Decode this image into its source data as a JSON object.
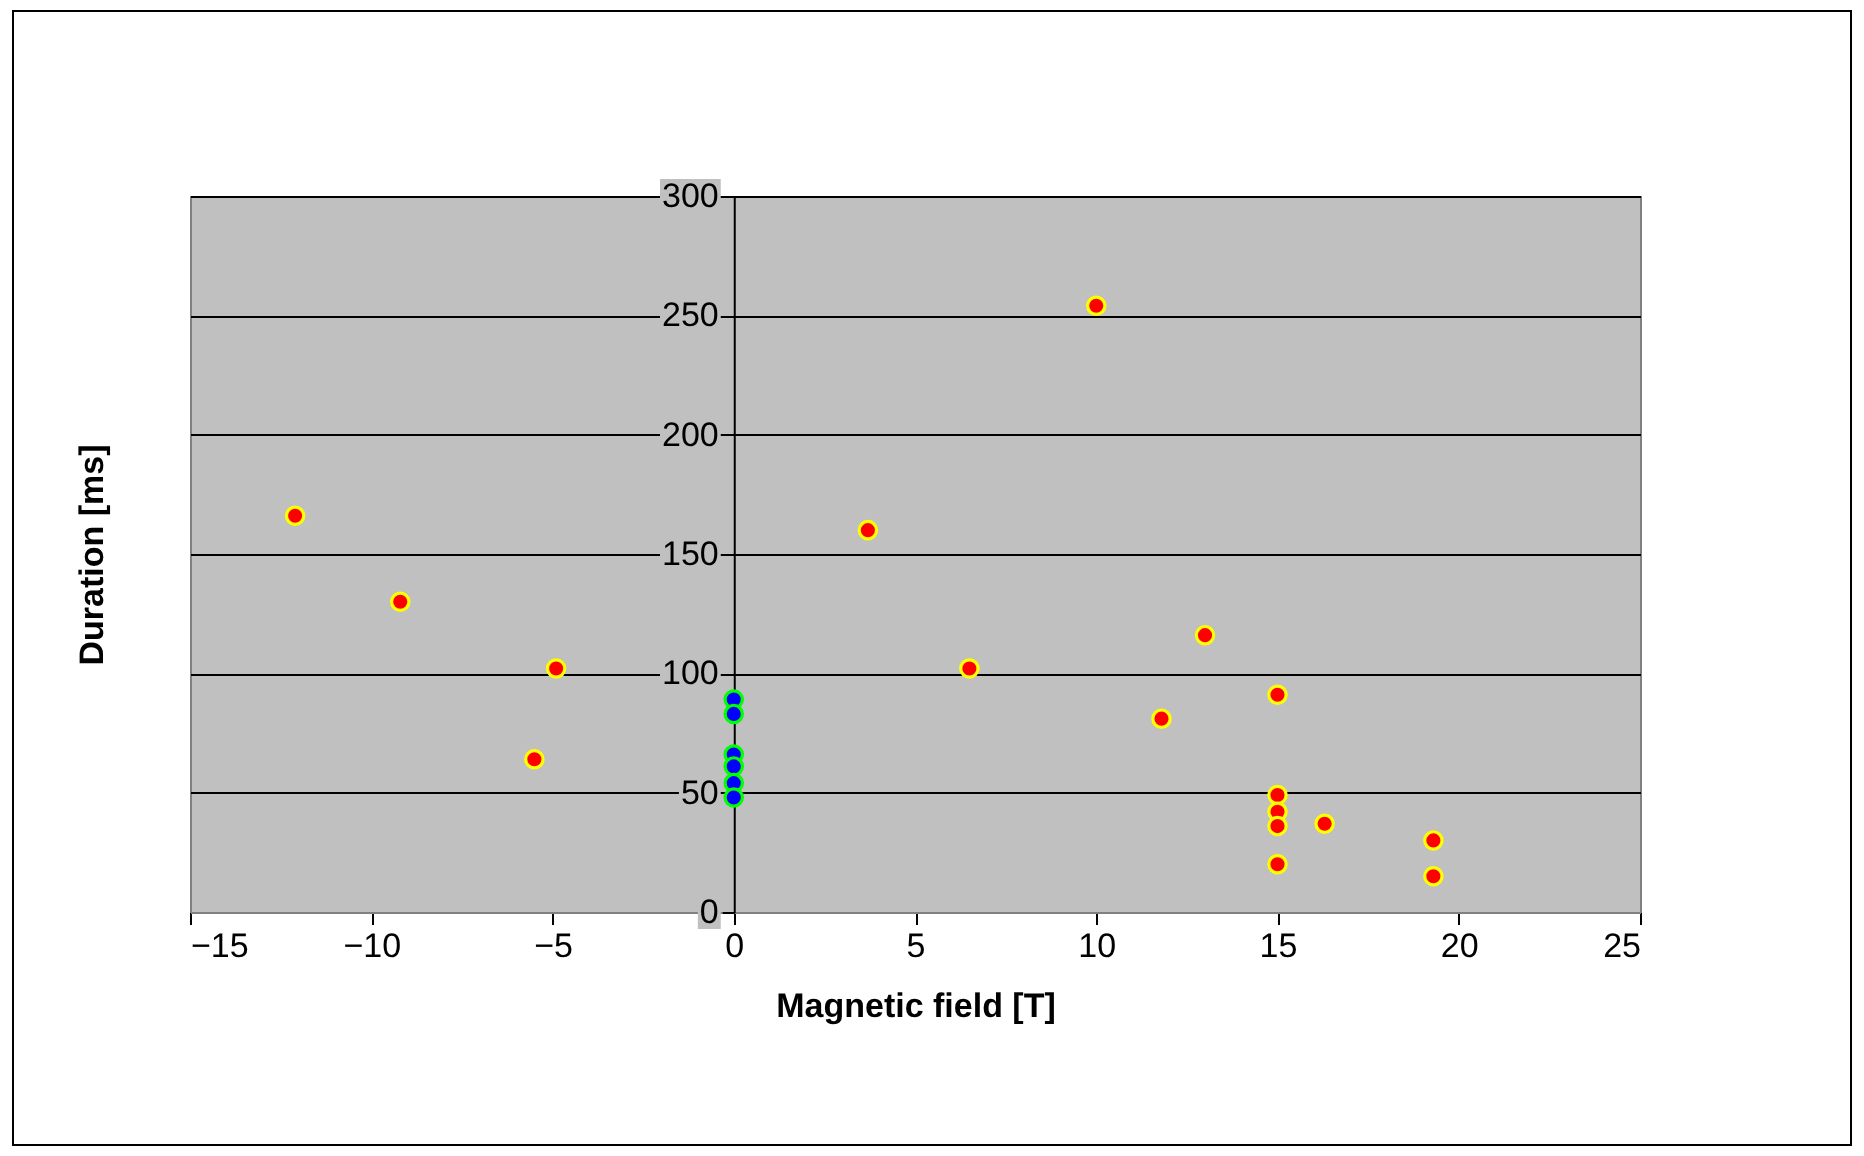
{
  "chart_data": {
    "type": "scatter",
    "xlabel": "Magnetic field [T]",
    "ylabel": "Duration [ms]",
    "xlim": [
      -15,
      25
    ],
    "xticks": [
      -15,
      -10,
      -5,
      0,
      5,
      10,
      15,
      20,
      25
    ],
    "ylim": [
      0,
      300
    ],
    "yticks": [
      0,
      50,
      100,
      150,
      200,
      250,
      300
    ],
    "grid": "y",
    "marker": "circle",
    "legend": false,
    "series": [
      {
        "color": "#ff0000",
        "x": [
          -12.1,
          -9.2,
          -4.9,
          -5.5,
          3.7,
          6.5,
          10,
          11.8,
          13,
          15,
          15,
          15,
          15,
          15,
          16.3,
          19.3,
          19.3
        ],
        "values": [
          166,
          130,
          102,
          64,
          160,
          102,
          254,
          81,
          116,
          91,
          49,
          42,
          36,
          20,
          37,
          30,
          15
        ]
      },
      {
        "color": "#0000ff",
        "x": [
          0,
          0,
          0,
          0,
          0,
          0
        ],
        "values": [
          89,
          83,
          66,
          61,
          54,
          48
        ]
      }
    ]
  }
}
